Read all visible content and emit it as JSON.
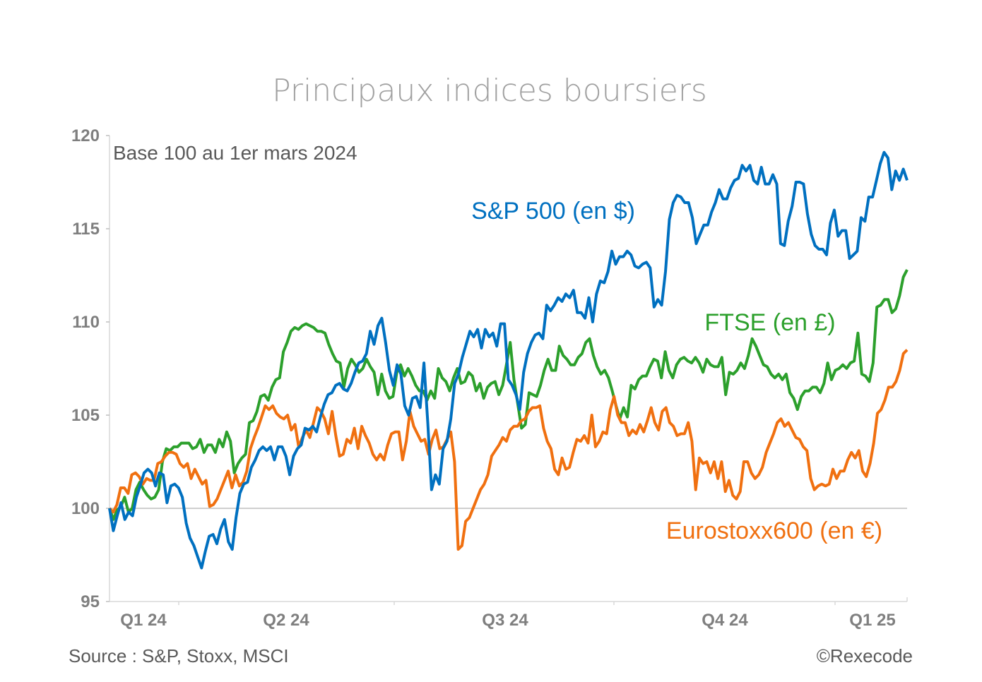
{
  "chart_data": {
    "type": "line",
    "title": "Principaux indices boursiers",
    "subtitle": "Base 100 au 1er mars 2024",
    "xlabel": "",
    "ylabel": "",
    "ylim": [
      95,
      120
    ],
    "yticks": [
      95,
      100,
      105,
      110,
      115,
      120
    ],
    "xticks": [
      "Q1 24",
      "Q2 24",
      "Q3 24",
      "Q4 24",
      "Q1 25"
    ],
    "xtick_positions": [
      0.09,
      0.35,
      0.62,
      0.89,
      1.0
    ],
    "reference_line": 100,
    "grid": false,
    "legend": "inline labels",
    "series": [
      {
        "name": "S&P 500 (en $)",
        "color": "#0070C0",
        "values": [
          100.0,
          98.8,
          99.6,
          100.3,
          99.4,
          99.8,
          99.6,
          100.6,
          101.2,
          101.9,
          102.1,
          101.9,
          101.2,
          101.9,
          101.8,
          100.3,
          101.2,
          101.3,
          101.1,
          100.6,
          99.2,
          98.4,
          98.0,
          97.4,
          96.8,
          97.7,
          98.5,
          98.6,
          98.1,
          98.9,
          99.4,
          98.2,
          97.8,
          99.5,
          100.8,
          101.3,
          101.4,
          102.2,
          102.6,
          103.1,
          103.3,
          103.1,
          103.3,
          102.6,
          103.3,
          103.3,
          102.8,
          101.8,
          102.8,
          103.2,
          103.4,
          104.3,
          104.2,
          104.4,
          104.1,
          104.9,
          105.6,
          106.1,
          106.2,
          106.6,
          106.7,
          106.4,
          106.3,
          106.7,
          107.3,
          107.8,
          107.9,
          108.3,
          109.5,
          108.8,
          109.8,
          110.2,
          108.9,
          107.4,
          106.6,
          107.7,
          107.2,
          105.5,
          105.0,
          105.9,
          106.0,
          105.4,
          107.8,
          104.6,
          101.0,
          101.8,
          101.3,
          103.2,
          103.6,
          104.8,
          106.7,
          107.2,
          108.1,
          108.8,
          109.5,
          109.2,
          109.6,
          108.6,
          109.6,
          109.2,
          109.4,
          108.7,
          109.9,
          109.9,
          106.9,
          106.6,
          106.1,
          105.3,
          107.3,
          108.3,
          108.9,
          109.3,
          109.4,
          109.1,
          110.9,
          110.6,
          110.9,
          111.3,
          111.1,
          111.5,
          111.3,
          111.7,
          110.5,
          110.5,
          110.2,
          111.3,
          110.0,
          111.5,
          112.2,
          112.1,
          112.7,
          113.8,
          113.1,
          113.5,
          113.5,
          113.8,
          113.6,
          113.0,
          112.9,
          113.1,
          113.2,
          112.9,
          110.8,
          111.2,
          110.9,
          112.7,
          115.5,
          116.4,
          116.8,
          116.7,
          116.4,
          116.4,
          115.6,
          114.2,
          114.7,
          115.2,
          115.2,
          115.9,
          116.4,
          117.1,
          116.6,
          116.6,
          117.2,
          117.6,
          117.7,
          118.4,
          118.1,
          118.4,
          117.6,
          117.4,
          118.3,
          117.4,
          117.4,
          117.9,
          117.4,
          114.2,
          114.1,
          115.4,
          116.2,
          117.5,
          117.5,
          117.4,
          115.8,
          114.7,
          114.1,
          113.9,
          113.9,
          113.6,
          115.3,
          116.0,
          114.6,
          114.9,
          114.9,
          113.4,
          113.6,
          113.8,
          115.6,
          115.4,
          116.7,
          116.7,
          117.6,
          118.5,
          119.1,
          118.8,
          117.1,
          118.1,
          117.6,
          118.2,
          117.6
        ],
        "label_position": "upper-center"
      },
      {
        "name": "FTSE (en £)",
        "color": "#2CA02C",
        "values": [
          100.0,
          99.4,
          99.9,
          100.1,
          100.6,
          99.8,
          100.0,
          101.0,
          101.4,
          101.0,
          100.7,
          100.5,
          100.6,
          101.0,
          102.5,
          103.2,
          103.1,
          103.3,
          103.3,
          103.5,
          103.5,
          103.5,
          103.2,
          103.3,
          103.7,
          103.0,
          103.4,
          103.4,
          103.0,
          103.7,
          103.3,
          104.1,
          103.6,
          101.9,
          102.4,
          102.7,
          102.9,
          104.6,
          104.7,
          105.2,
          106.0,
          106.1,
          105.8,
          106.5,
          106.9,
          107.0,
          108.4,
          108.9,
          109.5,
          109.7,
          109.6,
          109.8,
          109.9,
          109.8,
          109.7,
          109.5,
          109.5,
          109.4,
          108.8,
          108.3,
          107.9,
          107.8,
          106.5,
          107.5,
          108.0,
          107.7,
          107.3,
          107.5,
          108.0,
          107.6,
          107.3,
          106.1,
          107.2,
          106.3,
          105.9,
          106.0,
          107.3,
          107.7,
          107.1,
          107.5,
          107.1,
          106.6,
          106.3,
          106.3,
          105.8,
          106.3,
          105.9,
          107.5,
          107.0,
          106.8,
          106.3,
          107.0,
          107.5,
          106.7,
          106.8,
          107.3,
          107.1,
          106.3,
          106.7,
          105.9,
          106.5,
          106.7,
          106.8,
          106.1,
          106.6,
          107.7,
          108.9,
          106.9,
          105.6,
          104.3,
          104.5,
          106.2,
          106.1,
          106.0,
          106.6,
          107.4,
          108.0,
          107.4,
          107.4,
          108.7,
          108.2,
          108.0,
          107.7,
          107.7,
          108.1,
          108.3,
          108.9,
          109.1,
          108.2,
          107.6,
          107.2,
          107.4,
          107.0,
          106.3,
          105.5,
          104.8,
          105.4,
          104.9,
          106.6,
          106.4,
          106.9,
          107.1,
          107.1,
          107.6,
          108.0,
          107.9,
          107.0,
          108.4,
          107.4,
          107.0,
          107.7,
          108.0,
          108.1,
          107.9,
          107.8,
          108.1,
          107.8,
          107.3,
          108.0,
          107.7,
          107.6,
          107.6,
          108.1,
          106.1,
          107.3,
          107.2,
          107.4,
          107.8,
          107.5,
          108.2,
          109.1,
          108.7,
          108.2,
          107.7,
          107.6,
          107.2,
          107.0,
          107.2,
          106.9,
          107.2,
          106.2,
          105.9,
          105.3,
          106.0,
          106.3,
          106.3,
          106.5,
          106.5,
          106.2,
          106.7,
          107.8,
          106.9,
          107.4,
          107.5,
          107.7,
          107.5,
          107.8,
          107.9,
          109.4,
          107.2,
          107.1,
          106.8,
          107.8,
          110.8,
          110.9,
          111.2,
          111.2,
          110.5,
          110.7,
          111.4,
          112.4,
          112.8
        ],
        "label_position": "right"
      },
      {
        "name": "Eurostoxx600 (en €)",
        "color": "#F07010",
        "values": [
          100.0,
          99.8,
          100.2,
          101.1,
          101.1,
          100.8,
          101.8,
          101.9,
          101.7,
          101.3,
          101.6,
          101.5,
          101.5,
          102.4,
          102.5,
          102.8,
          103.0,
          103.0,
          102.9,
          102.4,
          102.2,
          102.4,
          101.6,
          102.1,
          101.7,
          101.3,
          101.5,
          100.1,
          100.2,
          100.5,
          101.0,
          101.5,
          102.0,
          101.1,
          101.8,
          101.2,
          101.4,
          102.0,
          103.2,
          103.8,
          104.3,
          104.9,
          105.5,
          105.3,
          105.5,
          105.1,
          104.9,
          104.8,
          105.0,
          104.2,
          104.5,
          103.3,
          103.8,
          104.2,
          103.8,
          104.6,
          105.4,
          105.2,
          104.8,
          104.0,
          105.2,
          103.9,
          102.8,
          102.9,
          103.7,
          103.5,
          104.3,
          103.2,
          104.4,
          103.9,
          103.5,
          102.9,
          102.6,
          102.9,
          102.6,
          103.4,
          104.0,
          104.1,
          104.1,
          102.6,
          103.6,
          105.2,
          104.4,
          104.0,
          103.6,
          103.7,
          102.9,
          103.7,
          104.2,
          103.2,
          103.3,
          103.7,
          104.1,
          102.5,
          97.8,
          98.0,
          99.3,
          99.5,
          100.0,
          100.5,
          101.0,
          101.3,
          101.8,
          102.8,
          103.1,
          103.4,
          103.8,
          103.6,
          104.2,
          104.4,
          104.4,
          104.7,
          104.8,
          105.2,
          105.4,
          105.4,
          105.5,
          104.3,
          103.6,
          103.2,
          102.1,
          101.8,
          102.7,
          102.1,
          102.2,
          103.0,
          103.7,
          103.6,
          103.9,
          103.5,
          105.0,
          103.3,
          103.6,
          104.1,
          104.0,
          105.3,
          106.0,
          105.0,
          104.6,
          104.6,
          103.9,
          104.2,
          104.0,
          104.5,
          104.1,
          104.7,
          105.4,
          104.6,
          104.2,
          105.2,
          105.4,
          104.6,
          104.4,
          103.9,
          104.0,
          104.0,
          104.6,
          103.6,
          101.0,
          102.7,
          102.4,
          102.5,
          101.9,
          102.5,
          101.6,
          102.5,
          100.9,
          101.5,
          100.7,
          100.5,
          100.9,
          102.5,
          102.5,
          101.9,
          101.6,
          101.8,
          102.2,
          103.0,
          103.5,
          104.0,
          104.6,
          104.8,
          104.4,
          104.6,
          104.2,
          103.8,
          103.7,
          103.3,
          103.1,
          101.6,
          101.0,
          101.2,
          101.3,
          101.2,
          101.3,
          102.1,
          101.6,
          102.0,
          102.0,
          102.6,
          103.0,
          102.7,
          103.1,
          102.0,
          101.7,
          102.4,
          103.5,
          105.1,
          105.3,
          105.8,
          106.5,
          106.5,
          106.8,
          107.4,
          108.3,
          108.5
        ],
        "label_position": "bottom-right"
      }
    ]
  },
  "footer": {
    "source": "Source : S&P, Stoxx, MSCI",
    "copyright": "©Rexecode"
  }
}
